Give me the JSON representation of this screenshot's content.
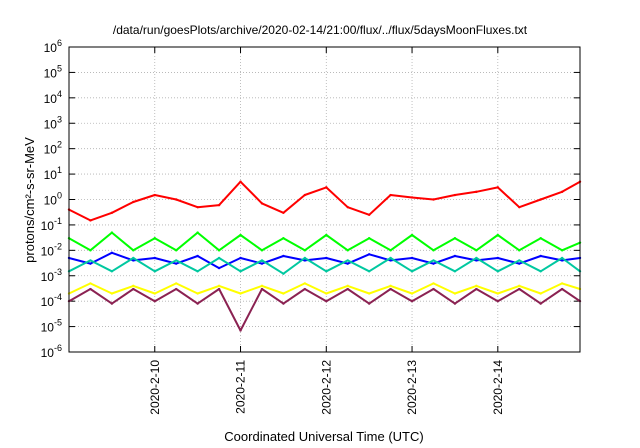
{
  "chart_data": {
    "type": "line",
    "title": "/data/run/goesPlots/archive/2020-02-14/21:00/flux/../flux/5daysMoonFluxes.txt",
    "xlabel": "Coordinated Universal Time (UTC)",
    "ylabel": "protons/cm²-s-sr-MeV",
    "y_scale": "log",
    "ylim": [
      1e-06,
      1000000.0
    ],
    "xlim": [
      "2020-02-09T00:00",
      "2020-02-14T23:00"
    ],
    "grid": true,
    "y_ticks": [
      {
        "value": 1e-06,
        "base": "10",
        "exp": "-6"
      },
      {
        "value": 1e-05,
        "base": "10",
        "exp": "-5"
      },
      {
        "value": 0.0001,
        "base": "10",
        "exp": "-4"
      },
      {
        "value": 0.001,
        "base": "10",
        "exp": "-3"
      },
      {
        "value": 0.01,
        "base": "10",
        "exp": "-2"
      },
      {
        "value": 0.1,
        "base": "10",
        "exp": "-1"
      },
      {
        "value": 1,
        "base": "10",
        "exp": "0"
      },
      {
        "value": 10,
        "base": "10",
        "exp": "1"
      },
      {
        "value": 100,
        "base": "10",
        "exp": "2"
      },
      {
        "value": 1000,
        "base": "10",
        "exp": "3"
      },
      {
        "value": 10000,
        "base": "10",
        "exp": "4"
      },
      {
        "value": 100000,
        "base": "10",
        "exp": "5"
      },
      {
        "value": 1000000,
        "base": "10",
        "exp": "6"
      }
    ],
    "x_ticks": [
      "2020-2-10",
      "2020-2-11",
      "2020-2-12",
      "2020-2-13",
      "2020-2-14"
    ],
    "series": [
      {
        "color": "#ff0000",
        "x": [
          "2020-02-09T00:00",
          "2020-02-09T06:00",
          "2020-02-09T12:00",
          "2020-02-09T18:00",
          "2020-02-10T00:00",
          "2020-02-10T06:00",
          "2020-02-10T12:00",
          "2020-02-10T18:00",
          "2020-02-11T00:00",
          "2020-02-11T06:00",
          "2020-02-11T12:00",
          "2020-02-11T18:00",
          "2020-02-12T00:00",
          "2020-02-12T06:00",
          "2020-02-12T12:00",
          "2020-02-12T18:00",
          "2020-02-13T00:00",
          "2020-02-13T06:00",
          "2020-02-13T12:00",
          "2020-02-13T18:00",
          "2020-02-14T00:00",
          "2020-02-14T06:00",
          "2020-02-14T12:00",
          "2020-02-14T18:00",
          "2020-02-14T23:00"
        ],
        "y": [
          0.4,
          0.15,
          0.3,
          0.8,
          1.5,
          1.0,
          0.5,
          0.6,
          5.0,
          0.7,
          0.3,
          1.5,
          3.0,
          0.5,
          0.25,
          1.5,
          1.2,
          1.0,
          1.5,
          2.0,
          3.0,
          0.5,
          1.0,
          2.0,
          5.0
        ]
      },
      {
        "color": "#00ff00",
        "x": [
          "2020-02-09T00:00",
          "2020-02-09T06:00",
          "2020-02-09T12:00",
          "2020-02-09T18:00",
          "2020-02-10T00:00",
          "2020-02-10T06:00",
          "2020-02-10T12:00",
          "2020-02-10T18:00",
          "2020-02-11T00:00",
          "2020-02-11T06:00",
          "2020-02-11T12:00",
          "2020-02-11T18:00",
          "2020-02-12T00:00",
          "2020-02-12T06:00",
          "2020-02-12T12:00",
          "2020-02-12T18:00",
          "2020-02-13T00:00",
          "2020-02-13T06:00",
          "2020-02-13T12:00",
          "2020-02-13T18:00",
          "2020-02-14T00:00",
          "2020-02-14T06:00",
          "2020-02-14T12:00",
          "2020-02-14T18:00",
          "2020-02-14T23:00"
        ],
        "y": [
          0.03,
          0.01,
          0.05,
          0.01,
          0.03,
          0.01,
          0.05,
          0.01,
          0.04,
          0.01,
          0.03,
          0.01,
          0.04,
          0.01,
          0.03,
          0.01,
          0.04,
          0.01,
          0.03,
          0.01,
          0.04,
          0.01,
          0.03,
          0.01,
          0.02
        ]
      },
      {
        "color": "#0000ff",
        "x": [
          "2020-02-09T00:00",
          "2020-02-09T06:00",
          "2020-02-09T12:00",
          "2020-02-09T18:00",
          "2020-02-10T00:00",
          "2020-02-10T06:00",
          "2020-02-10T12:00",
          "2020-02-10T18:00",
          "2020-02-11T00:00",
          "2020-02-11T06:00",
          "2020-02-11T12:00",
          "2020-02-11T18:00",
          "2020-02-12T00:00",
          "2020-02-12T06:00",
          "2020-02-12T12:00",
          "2020-02-12T18:00",
          "2020-02-13T00:00",
          "2020-02-13T06:00",
          "2020-02-13T12:00",
          "2020-02-13T18:00",
          "2020-02-14T00:00",
          "2020-02-14T06:00",
          "2020-02-14T12:00",
          "2020-02-14T18:00",
          "2020-02-14T23:00"
        ],
        "y": [
          0.005,
          0.003,
          0.008,
          0.004,
          0.005,
          0.003,
          0.006,
          0.002,
          0.005,
          0.003,
          0.006,
          0.004,
          0.005,
          0.003,
          0.007,
          0.004,
          0.005,
          0.003,
          0.006,
          0.004,
          0.005,
          0.003,
          0.006,
          0.004,
          0.005
        ]
      },
      {
        "color": "#00c8a0",
        "x": [
          "2020-02-09T00:00",
          "2020-02-09T06:00",
          "2020-02-09T12:00",
          "2020-02-09T18:00",
          "2020-02-10T00:00",
          "2020-02-10T06:00",
          "2020-02-10T12:00",
          "2020-02-10T18:00",
          "2020-02-11T00:00",
          "2020-02-11T06:00",
          "2020-02-11T12:00",
          "2020-02-11T18:00",
          "2020-02-12T00:00",
          "2020-02-12T06:00",
          "2020-02-12T12:00",
          "2020-02-12T18:00",
          "2020-02-13T00:00",
          "2020-02-13T06:00",
          "2020-02-13T12:00",
          "2020-02-13T18:00",
          "2020-02-14T00:00",
          "2020-02-14T06:00",
          "2020-02-14T12:00",
          "2020-02-14T18:00",
          "2020-02-14T23:00"
        ],
        "y": [
          0.0015,
          0.004,
          0.0015,
          0.005,
          0.0015,
          0.004,
          0.0015,
          0.005,
          0.0015,
          0.004,
          0.0012,
          0.005,
          0.0015,
          0.004,
          0.0015,
          0.005,
          0.0015,
          0.004,
          0.0015,
          0.005,
          0.0015,
          0.004,
          0.0015,
          0.005,
          0.0015
        ]
      },
      {
        "color": "#ffff00",
        "x": [
          "2020-02-09T00:00",
          "2020-02-09T06:00",
          "2020-02-09T12:00",
          "2020-02-09T18:00",
          "2020-02-10T00:00",
          "2020-02-10T06:00",
          "2020-02-10T12:00",
          "2020-02-10T18:00",
          "2020-02-11T00:00",
          "2020-02-11T06:00",
          "2020-02-11T12:00",
          "2020-02-11T18:00",
          "2020-02-12T00:00",
          "2020-02-12T06:00",
          "2020-02-12T12:00",
          "2020-02-12T18:00",
          "2020-02-13T00:00",
          "2020-02-13T06:00",
          "2020-02-13T12:00",
          "2020-02-13T18:00",
          "2020-02-14T00:00",
          "2020-02-14T06:00",
          "2020-02-14T12:00",
          "2020-02-14T18:00",
          "2020-02-14T23:00"
        ],
        "y": [
          0.0002,
          0.0005,
          0.0002,
          0.0004,
          0.0002,
          0.0005,
          0.0002,
          0.0004,
          0.0002,
          0.0004,
          0.0002,
          0.0005,
          0.0002,
          0.0004,
          0.0002,
          0.0004,
          0.0002,
          0.0005,
          0.0002,
          0.0004,
          0.0002,
          0.0004,
          0.0002,
          0.0005,
          0.0003
        ]
      },
      {
        "color": "#8b2252",
        "x": [
          "2020-02-09T00:00",
          "2020-02-09T06:00",
          "2020-02-09T12:00",
          "2020-02-09T18:00",
          "2020-02-10T00:00",
          "2020-02-10T06:00",
          "2020-02-10T12:00",
          "2020-02-10T18:00",
          "2020-02-11T00:00",
          "2020-02-11T06:00",
          "2020-02-11T12:00",
          "2020-02-11T18:00",
          "2020-02-12T00:00",
          "2020-02-12T06:00",
          "2020-02-12T12:00",
          "2020-02-12T18:00",
          "2020-02-13T00:00",
          "2020-02-13T06:00",
          "2020-02-13T12:00",
          "2020-02-13T18:00",
          "2020-02-14T00:00",
          "2020-02-14T06:00",
          "2020-02-14T12:00",
          "2020-02-14T18:00",
          "2020-02-14T23:00"
        ],
        "y": [
          0.0001,
          0.0003,
          8e-05,
          0.0003,
          0.0001,
          0.0003,
          8e-05,
          0.0003,
          7e-06,
          0.0003,
          8e-05,
          0.0003,
          0.0001,
          0.0003,
          8e-05,
          0.0003,
          0.0001,
          0.0003,
          8e-05,
          0.0003,
          0.0001,
          0.0003,
          8e-05,
          0.0003,
          0.0001
        ]
      }
    ]
  }
}
